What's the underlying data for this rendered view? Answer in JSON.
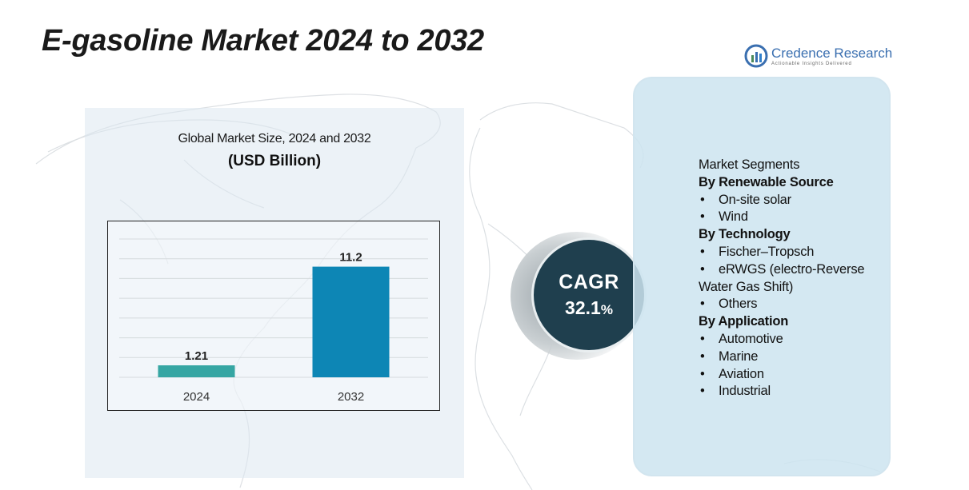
{
  "page": {
    "title": "E-gasoline Market 2024 to 2032"
  },
  "logo": {
    "name": "Credence Research",
    "tagline": "Actionable Insights Delivered"
  },
  "chart_heading": "Global Market Size, 2024 and 2032",
  "chart_unit": "(USD Billion)",
  "chart_data": {
    "type": "bar",
    "categories": [
      "2024",
      "2032"
    ],
    "values": [
      1.21,
      11.2
    ],
    "value_labels": [
      "1.21",
      "11.2"
    ],
    "title": "Global Market Size, 2024 and 2032",
    "subtitle": "(USD Billion)",
    "xlabel": "",
    "ylabel": "",
    "ylim": [
      0,
      14
    ],
    "grid": true,
    "colors": [
      "#36a6a3",
      "#0d86b5"
    ]
  },
  "cagr": {
    "label": "CAGR",
    "value": "32.1",
    "unit": "%"
  },
  "segments": {
    "title": "Market Segments",
    "groups": [
      {
        "heading": "By Renewable Source",
        "items": [
          "On-site solar",
          "Wind"
        ]
      },
      {
        "heading": "By Technology",
        "items": [
          "Fischer–Tropsch",
          "eRWGS (electro-Reverse Water Gas Shift)",
          "Others"
        ]
      },
      {
        "heading": "By Application",
        "items": [
          "Automotive",
          "Marine",
          "Aviation",
          "Industrial"
        ]
      }
    ],
    "bullet": "•"
  },
  "colors": {
    "cagr_circle": "#1f3f4e",
    "card_bg": "#cde4f0",
    "panel_bg": "#dce8f0"
  }
}
